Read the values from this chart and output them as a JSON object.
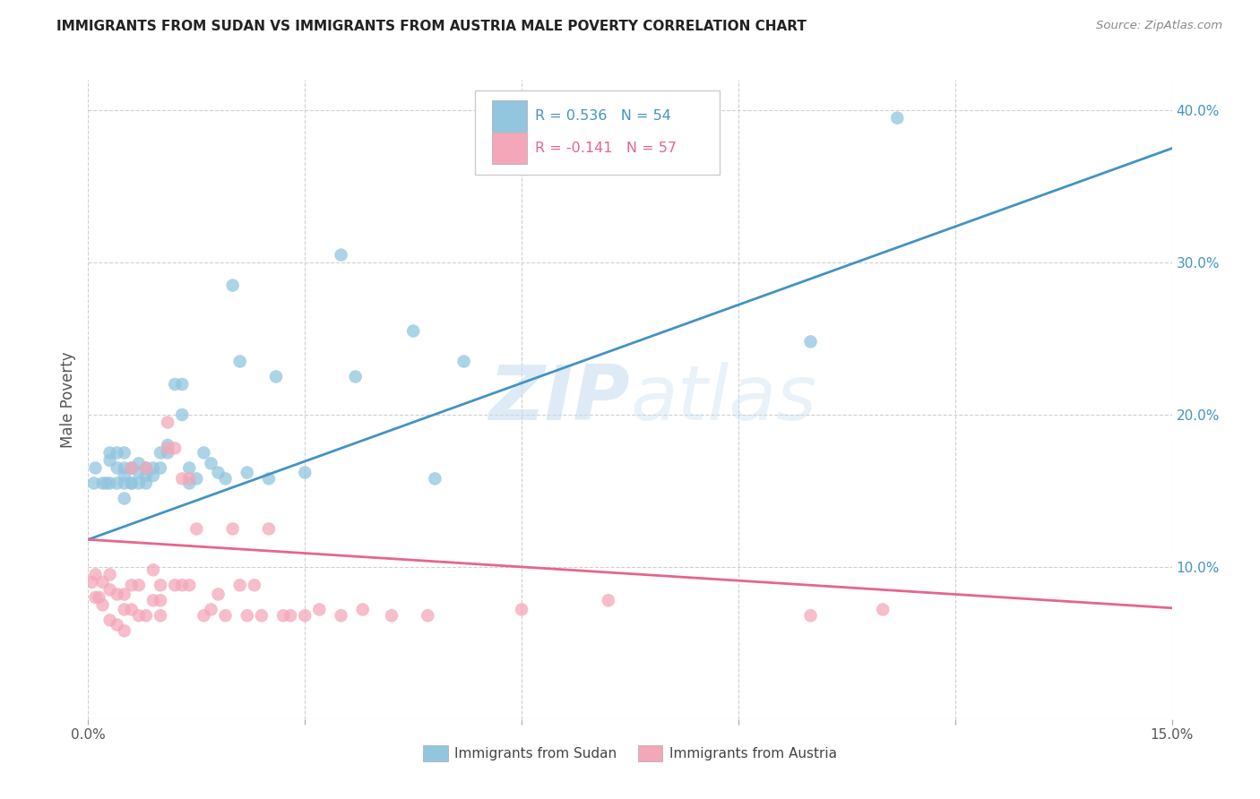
{
  "title": "IMMIGRANTS FROM SUDAN VS IMMIGRANTS FROM AUSTRIA MALE POVERTY CORRELATION CHART",
  "source": "Source: ZipAtlas.com",
  "ylabel": "Male Poverty",
  "xlim": [
    0.0,
    0.15
  ],
  "ylim": [
    0.0,
    0.42
  ],
  "x_ticks": [
    0.0,
    0.03,
    0.06,
    0.09,
    0.12,
    0.15
  ],
  "x_tick_labels_show": [
    "0.0%",
    "15.0%"
  ],
  "y_ticks_right": [
    0.1,
    0.2,
    0.3,
    0.4
  ],
  "y_tick_labels_right": [
    "10.0%",
    "20.0%",
    "30.0%",
    "40.0%"
  ],
  "legend_sudan_label": "Immigrants from Sudan",
  "legend_austria_label": "Immigrants from Austria",
  "sudan_R": "0.536",
  "sudan_N": "54",
  "austria_R": "-0.141",
  "austria_N": "57",
  "sudan_color": "#92c5de",
  "austria_color": "#f4a7b9",
  "sudan_line_color": "#4393c3",
  "austria_line_color": "#e7658b",
  "sudan_scatter_x": [
    0.0008,
    0.001,
    0.002,
    0.0025,
    0.003,
    0.003,
    0.003,
    0.004,
    0.004,
    0.004,
    0.005,
    0.005,
    0.005,
    0.005,
    0.005,
    0.006,
    0.006,
    0.006,
    0.006,
    0.007,
    0.007,
    0.007,
    0.008,
    0.008,
    0.008,
    0.009,
    0.009,
    0.01,
    0.01,
    0.011,
    0.011,
    0.012,
    0.013,
    0.013,
    0.014,
    0.014,
    0.015,
    0.016,
    0.017,
    0.018,
    0.019,
    0.02,
    0.021,
    0.022,
    0.025,
    0.026,
    0.03,
    0.035,
    0.037,
    0.045,
    0.048,
    0.052,
    0.1,
    0.112
  ],
  "sudan_scatter_y": [
    0.155,
    0.165,
    0.155,
    0.155,
    0.175,
    0.17,
    0.155,
    0.175,
    0.165,
    0.155,
    0.175,
    0.165,
    0.155,
    0.145,
    0.16,
    0.165,
    0.155,
    0.165,
    0.155,
    0.168,
    0.162,
    0.155,
    0.165,
    0.16,
    0.155,
    0.165,
    0.16,
    0.175,
    0.165,
    0.18,
    0.175,
    0.22,
    0.22,
    0.2,
    0.165,
    0.155,
    0.158,
    0.175,
    0.168,
    0.162,
    0.158,
    0.285,
    0.235,
    0.162,
    0.158,
    0.225,
    0.162,
    0.305,
    0.225,
    0.255,
    0.158,
    0.235,
    0.248,
    0.395
  ],
  "austria_scatter_x": [
    0.0005,
    0.001,
    0.001,
    0.0015,
    0.002,
    0.002,
    0.003,
    0.003,
    0.003,
    0.004,
    0.004,
    0.005,
    0.005,
    0.005,
    0.006,
    0.006,
    0.006,
    0.007,
    0.007,
    0.008,
    0.008,
    0.009,
    0.009,
    0.01,
    0.01,
    0.01,
    0.011,
    0.011,
    0.012,
    0.012,
    0.013,
    0.013,
    0.014,
    0.014,
    0.015,
    0.016,
    0.017,
    0.018,
    0.019,
    0.02,
    0.021,
    0.022,
    0.023,
    0.024,
    0.025,
    0.027,
    0.028,
    0.03,
    0.032,
    0.035,
    0.038,
    0.042,
    0.047,
    0.06,
    0.072,
    0.1,
    0.11
  ],
  "austria_scatter_y": [
    0.09,
    0.095,
    0.08,
    0.08,
    0.09,
    0.075,
    0.095,
    0.085,
    0.065,
    0.082,
    0.062,
    0.072,
    0.058,
    0.082,
    0.165,
    0.088,
    0.072,
    0.088,
    0.068,
    0.165,
    0.068,
    0.078,
    0.098,
    0.088,
    0.068,
    0.078,
    0.195,
    0.178,
    0.178,
    0.088,
    0.088,
    0.158,
    0.088,
    0.158,
    0.125,
    0.068,
    0.072,
    0.082,
    0.068,
    0.125,
    0.088,
    0.068,
    0.088,
    0.068,
    0.125,
    0.068,
    0.068,
    0.068,
    0.072,
    0.068,
    0.072,
    0.068,
    0.068,
    0.072,
    0.078,
    0.068,
    0.072
  ],
  "sudan_trend_x": [
    0.0,
    0.15
  ],
  "sudan_trend_y": [
    0.118,
    0.375
  ],
  "austria_trend_x": [
    0.0,
    0.15
  ],
  "austria_trend_y": [
    0.118,
    0.073
  ],
  "watermark_text_zip": "ZIP",
  "watermark_text_atlas": "atlas",
  "background_color": "#ffffff",
  "grid_color": "#d0d0d0",
  "title_color": "#222222",
  "source_color": "#888888",
  "ylabel_color": "#555555",
  "tick_color": "#555555"
}
